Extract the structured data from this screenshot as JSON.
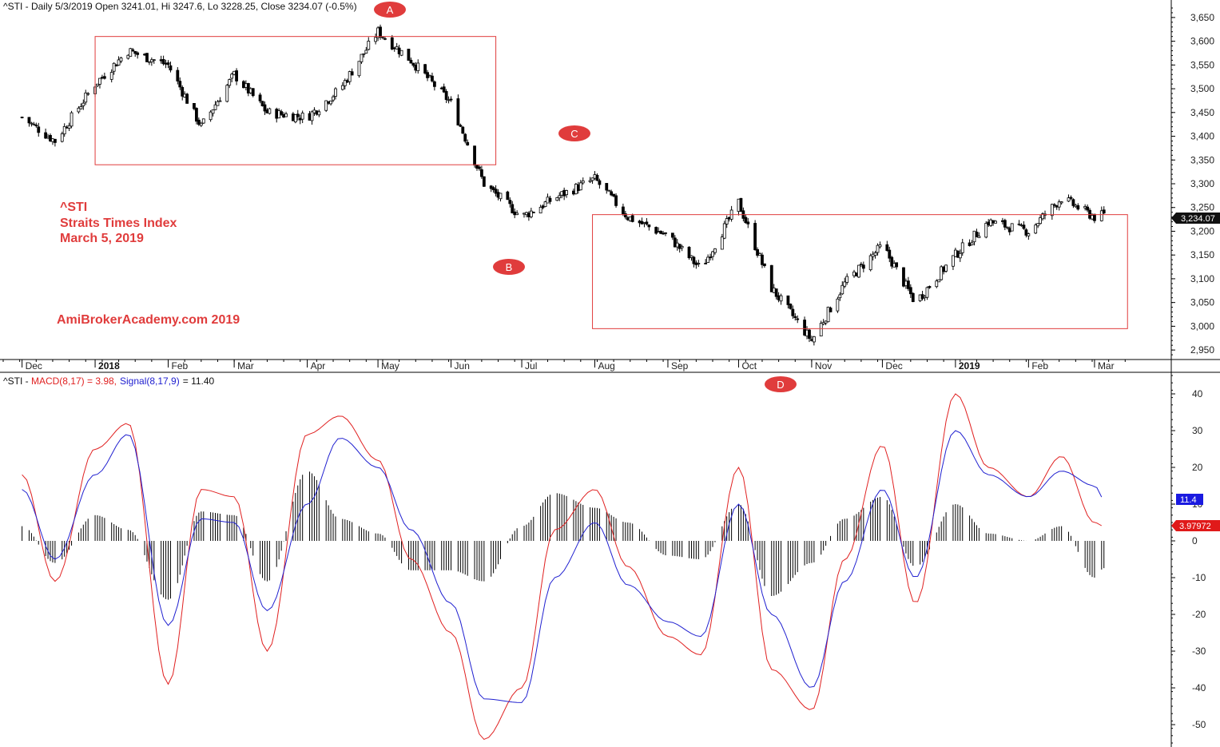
{
  "price_panel": {
    "title": "^STI - Daily 5/3/2019 Open 3241.01, Hi 3247.6, Lo 3228.25, Close 3234.07 (-0.5%)",
    "last_price_label": "3,234.07",
    "overlay_lines": [
      "^STI",
      "Straits Times Index",
      "March 5, 2019"
    ],
    "watermark": "AmiBrokerAcademy.com  2019",
    "markers": [
      "A",
      "B",
      "C"
    ]
  },
  "macd_panel": {
    "title_prefix": "^STI - ",
    "macd_label": "MACD(8,17) = 3.98,",
    "signal_label": "Signal(8,17,9)",
    "signal_value_text": "= 11.40",
    "signal_badge": "11.4",
    "macd_badge": "3.97972",
    "marker": "D"
  },
  "colors": {
    "annotation": "#e03c3c",
    "macd_line": "#e02020",
    "signal_line": "#2020d0",
    "signal_badge_bg": "#1a1ae0",
    "macd_badge_bg": "#e01a1a",
    "last_price_bg": "#111111"
  },
  "chart_data": [
    {
      "type": "candlestick",
      "title": "^STI - Daily 5/3/2019 Open 3241.01, Hi 3247.6, Lo 3228.25, Close 3234.07 (-0.5%)",
      "ylim": [
        2930,
        3670
      ],
      "y_ticks": [
        2950,
        3000,
        3050,
        3100,
        3150,
        3200,
        3250,
        3300,
        3350,
        3400,
        3450,
        3500,
        3550,
        3600,
        3650
      ],
      "y_tick_labels": [
        "2,950",
        "3,000",
        "3,050",
        "3,100",
        "3,150",
        "3,200",
        "3,250",
        "3,300",
        "3,350",
        "3,400",
        "3,450",
        "3,500",
        "3,550",
        "3,600",
        "3,650"
      ],
      "x_labels": [
        "Dec",
        "2018",
        "Feb",
        "Mar",
        "Apr",
        "May",
        "Jun",
        "Jul",
        "Aug",
        "Sep",
        "Oct",
        "Nov",
        "Dec",
        "2019",
        "Feb",
        "Mar"
      ],
      "x_label_bold": [
        false,
        true,
        false,
        false,
        false,
        false,
        false,
        false,
        false,
        false,
        false,
        false,
        false,
        true,
        false,
        false
      ],
      "x": [
        "2017-12-01",
        "2017-12-15",
        "2018-01-01",
        "2018-01-15",
        "2018-02-01",
        "2018-02-15",
        "2018-03-01",
        "2018-03-15",
        "2018-04-01",
        "2018-04-15",
        "2018-05-01",
        "2018-05-15",
        "2018-06-01",
        "2018-06-15",
        "2018-07-01",
        "2018-07-15",
        "2018-08-01",
        "2018-08-15",
        "2018-09-01",
        "2018-09-15",
        "2018-10-01",
        "2018-10-15",
        "2018-11-01",
        "2018-11-15",
        "2018-12-01",
        "2018-12-15",
        "2019-01-01",
        "2019-01-15",
        "2019-02-01",
        "2019-02-15",
        "2019-03-01",
        "2019-03-05"
      ],
      "close": [
        3440,
        3390,
        3510,
        3580,
        3550,
        3420,
        3530,
        3450,
        3440,
        3500,
        3620,
        3560,
        3470,
        3300,
        3230,
        3270,
        3310,
        3230,
        3190,
        3120,
        3260,
        3080,
        2970,
        3090,
        3170,
        3050,
        3150,
        3220,
        3200,
        3270,
        3230,
        3234
      ],
      "highlight_boxes": [
        {
          "x_from": "2018-01-01",
          "x_to": "2018-06-20",
          "y_from": 3340,
          "y_to": 3610
        },
        {
          "x_from": "2018-07-31",
          "x_to": "2019-03-15",
          "y_from": 2995,
          "y_to": 3235
        }
      ],
      "markers": [
        {
          "label": "A",
          "x": "2018-05-05",
          "y": 3660
        },
        {
          "label": "B",
          "x": "2018-07-01",
          "y": 3130
        },
        {
          "label": "C",
          "x": "2018-08-01",
          "y": 3410
        }
      ],
      "last_price": 3234.07
    },
    {
      "type": "line",
      "title": "^STI - MACD(8,17) = 3.98, Signal(8,17,9) = 11.40",
      "ylim": [
        -55,
        45
      ],
      "y_ticks": [
        -50,
        -40,
        -30,
        -20,
        -10,
        0,
        10,
        20,
        30,
        40
      ],
      "y_tick_labels": [
        "-50",
        "-40",
        "-30",
        "-20",
        "-10",
        "0",
        "10",
        "20",
        "30",
        "40"
      ],
      "x": [
        "2017-12-01",
        "2017-12-15",
        "2018-01-01",
        "2018-01-15",
        "2018-02-01",
        "2018-02-15",
        "2018-03-01",
        "2018-03-15",
        "2018-04-01",
        "2018-04-15",
        "2018-05-01",
        "2018-05-15",
        "2018-06-01",
        "2018-06-15",
        "2018-07-01",
        "2018-07-15",
        "2018-08-01",
        "2018-08-15",
        "2018-09-01",
        "2018-09-15",
        "2018-10-01",
        "2018-10-15",
        "2018-11-01",
        "2018-11-15",
        "2018-12-01",
        "2018-12-15",
        "2019-01-01",
        "2019-01-15",
        "2019-02-01",
        "2019-02-15",
        "2019-03-01",
        "2019-03-05"
      ],
      "series": [
        {
          "name": "MACD(8,17)",
          "values": [
            18,
            -11,
            25,
            32,
            -39,
            14,
            12,
            -30,
            29,
            34,
            22,
            -5,
            -25,
            -54,
            -40,
            3,
            14,
            -7,
            -26,
            -31,
            20,
            -35,
            -46,
            -5,
            26,
            -17,
            40,
            20,
            12,
            23,
            5,
            3.98
          ]
        },
        {
          "name": "Signal(8,17,9)",
          "values": [
            14,
            -5,
            18,
            29,
            -23,
            6,
            5,
            -19,
            10,
            28,
            20,
            3,
            -17,
            -43,
            -44,
            -10,
            5,
            -12,
            -22,
            -26,
            10,
            -20,
            -40,
            -11,
            14,
            -10,
            30,
            18,
            12,
            19,
            15,
            11.4
          ]
        },
        {
          "name": "Histogram",
          "values": [
            4,
            -6,
            7,
            3,
            -16,
            8,
            7,
            -11,
            19,
            6,
            2,
            -8,
            -8,
            -11,
            4,
            13,
            9,
            5,
            -4,
            -5,
            10,
            -15,
            -6,
            6,
            12,
            -7,
            10,
            2,
            0,
            4,
            -10,
            -7.42
          ]
        }
      ],
      "markers": [
        {
          "label": "D",
          "x": "2018-10-27",
          "y": 44
        }
      ],
      "badges": [
        {
          "label": "11.4",
          "y": 11.4
        },
        {
          "label": "3.97972",
          "y": 3.98
        }
      ]
    }
  ]
}
